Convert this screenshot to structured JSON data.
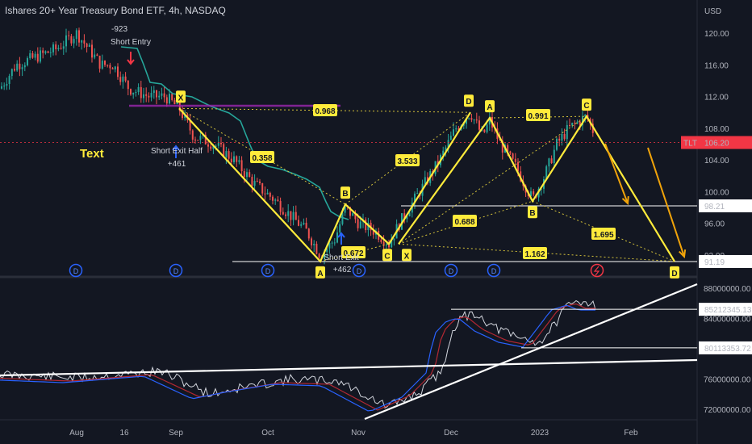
{
  "header": {
    "title": "Ishares 20+ Year Treasury Bond ETF, 4h, NASDAQ"
  },
  "chart_data": {
    "type": "candlestick",
    "currency": "USD",
    "yticks": [
      "120.00",
      "116.00",
      "112.00",
      "108.00",
      "104.00",
      "100.00",
      "96.00",
      "92.00"
    ],
    "ytick_values": [
      120,
      116,
      112,
      108,
      104,
      100,
      96,
      92
    ],
    "xticks": [
      "Aug",
      "16",
      "Sep",
      "Oct",
      "Nov",
      "Dec",
      "2023",
      "Feb"
    ],
    "last_price": {
      "symbol": "TLT",
      "value": "106.20"
    },
    "price_levels": [
      {
        "value": 98.21,
        "label": "98.21"
      },
      {
        "value": 91.19,
        "label": "91.19"
      }
    ],
    "lower_levels": [
      {
        "value": 85212345.13,
        "label": "85212345.13"
      },
      {
        "value": 80113353.72,
        "label": "80113353.72"
      }
    ],
    "lower_yticks": [
      "88000000.00",
      "84000000.00",
      "80000000.00",
      "76000000.00",
      "72000000.00"
    ],
    "lower_ytick_values": [
      88000000,
      84000000,
      80000000,
      76000000,
      72000000
    ],
    "pattern_points": [
      {
        "label": "X",
        "price": 110.5
      },
      {
        "label": "A",
        "price": 91.2
      },
      {
        "label": "B",
        "price": 98.4
      },
      {
        "label": "C",
        "price": 93.4
      },
      {
        "label": "D",
        "price": 110.0
      },
      {
        "label": "X",
        "price": 93.4
      },
      {
        "label": "A",
        "price": 109.3
      },
      {
        "label": "B",
        "price": 98.8
      },
      {
        "label": "C",
        "price": 109.5
      },
      {
        "label": "D",
        "price": 91.2
      }
    ],
    "ratios": [
      "0.968",
      "0.358",
      "0.672",
      "3.533",
      "0.991",
      "0.688",
      "1.695",
      "1.162"
    ],
    "trades": [
      {
        "label": "-923",
        "sub": "Short Entry"
      },
      {
        "label": "Short Exit Half",
        "sub": "+461"
      },
      {
        "label": "Short Exit",
        "sub": "+462"
      }
    ],
    "annotation_text": "Text",
    "dividend_marker": "D",
    "colors": {
      "up": "#26a69a",
      "down": "#ef5350",
      "pattern": "#ffeb3b",
      "line": "#ffffff",
      "stop": "#26a69a",
      "trend_arrow": "#f0a30a",
      "price_tag": "#f23645",
      "bg": "#131722"
    }
  }
}
